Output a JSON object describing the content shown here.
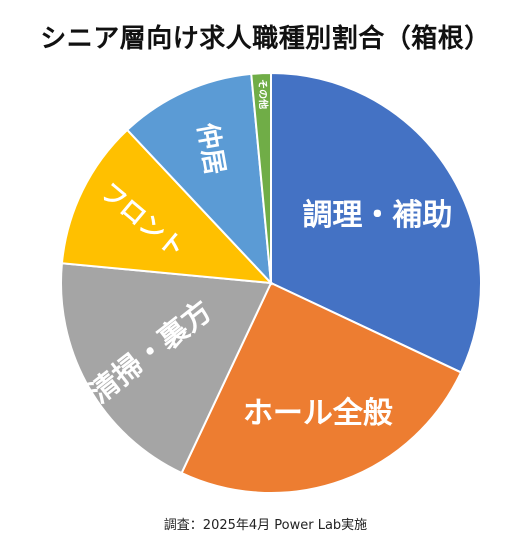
{
  "chart_data": {
    "type": "pie",
    "title": "シニア層向け求人職種別割合（箱根）",
    "start_angle_deg": 0,
    "direction": "clockwise",
    "slices": [
      {
        "label": "調理・補助",
        "value": 32.0,
        "color": "#4472C4"
      },
      {
        "label": "ホール全般",
        "value": 25.0,
        "color": "#ED7D31"
      },
      {
        "label": "清掃・裏方",
        "value": 19.5,
        "color": "#A5A5A5"
      },
      {
        "label": "フロント",
        "value": 11.5,
        "color": "#FFC000"
      },
      {
        "label": "仲居",
        "value": 10.5,
        "color": "#5B9BD5"
      },
      {
        "label": "その他",
        "value": 1.5,
        "color": "#70AD47"
      }
    ]
  },
  "footnote": "調査：2025年4月 Power Lab実施"
}
